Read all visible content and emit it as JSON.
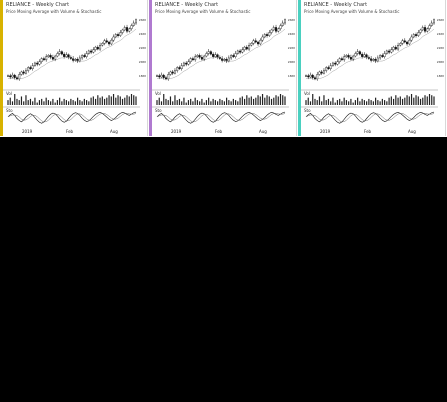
{
  "panels": [
    {
      "title": "RELIANCE - Weekly Chart",
      "flag": "",
      "subtitle": "Price Moving Average with Volume & Stochastic",
      "accent": "#d8b200",
      "ind1_label": "Vol",
      "ind2_label": "Sto",
      "x_labels": [
        "2019",
        "Feb",
        "Aug"
      ],
      "y_labels": [
        "2600",
        "2400",
        "2200",
        "2000",
        "1800"
      ]
    },
    {
      "title": "RELIANCE - Weekly Chart",
      "flag": "",
      "subtitle": "Price Moving Average with Volume & Stochastic",
      "accent": "#b07ad0",
      "ind1_label": "Vol",
      "ind2_label": "Sto",
      "x_labels": [
        "2019",
        "Feb",
        "Aug"
      ],
      "y_labels": [
        "2600",
        "2400",
        "2200",
        "2000",
        "1800"
      ]
    },
    {
      "title": "RELIANCE - Weekly Chart",
      "flag": "",
      "subtitle": "Price Moving Average with Volume & Stochastic",
      "accent": "#4ad0c0",
      "ind1_label": "Vol",
      "ind2_label": "Sto",
      "x_labels": [
        "2019",
        "Feb",
        "Aug"
      ],
      "y_labels": [
        "2600",
        "2400",
        "2200",
        "2000",
        "1800"
      ]
    }
  ],
  "price_series": [
    120,
    118,
    121,
    117,
    115,
    122,
    126,
    124,
    128,
    133,
    131,
    136,
    140,
    138,
    142,
    147,
    145,
    150,
    152,
    149,
    146,
    151,
    155,
    158,
    154,
    150,
    153,
    149,
    147,
    144,
    146,
    143,
    148,
    152,
    150,
    155,
    159,
    157,
    161,
    165,
    162,
    168,
    171,
    175,
    173,
    170,
    176,
    181,
    185,
    183,
    188,
    192,
    196,
    190,
    194,
    199,
    203,
    208
  ],
  "volume_series": [
    4,
    6,
    3,
    9,
    5,
    4,
    7,
    3,
    8,
    4,
    5,
    3,
    6,
    2,
    4,
    5,
    3,
    6,
    4,
    3,
    5,
    2,
    4,
    6,
    3,
    5,
    4,
    3,
    5,
    4,
    3,
    6,
    4,
    3,
    5,
    4,
    3,
    6,
    7,
    5,
    8,
    6,
    7,
    5,
    6,
    8,
    7,
    9,
    6,
    8,
    7,
    5,
    6,
    8,
    7,
    9,
    8,
    7
  ],
  "stoch_series": [
    60,
    72,
    80,
    68,
    50,
    38,
    30,
    42,
    58,
    70,
    78,
    70,
    55,
    40,
    28,
    22,
    30,
    45,
    62,
    75,
    82,
    78,
    65,
    48,
    35,
    28,
    34,
    50,
    66,
    78,
    84,
    80,
    68,
    52,
    40,
    32,
    36,
    48,
    62,
    74,
    82,
    86,
    80,
    70,
    58,
    46,
    38,
    44,
    56,
    70,
    80,
    86,
    82,
    74,
    68,
    76,
    84,
    88
  ]
}
